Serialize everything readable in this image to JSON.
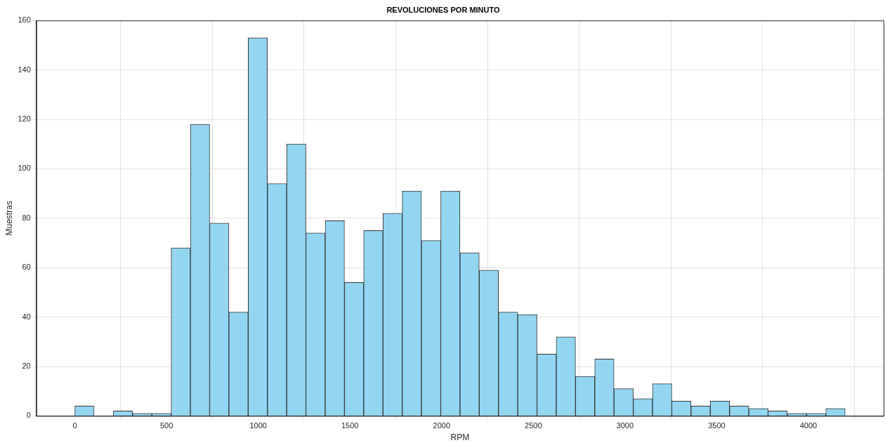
{
  "chart_data": {
    "type": "histogram",
    "title": "REVOLUCIONES POR MINUTO",
    "xlabel": "RPM",
    "ylabel": "Muestras",
    "bins": [
      0,
      105,
      210,
      315,
      420,
      525,
      630,
      735,
      840,
      945,
      1050,
      1155,
      1260,
      1365,
      1470,
      1575,
      1680,
      1785,
      1890,
      1995,
      2100,
      2205,
      2310,
      2415,
      2520,
      2625,
      2730,
      2835,
      2940,
      3045,
      3150,
      3255,
      3360,
      3465,
      3570,
      3675,
      3780,
      3885,
      3990,
      4095,
      4200
    ],
    "values": [
      4,
      0,
      2,
      1,
      1,
      68,
      118,
      78,
      42,
      153,
      94,
      110,
      74,
      79,
      54,
      75,
      82,
      91,
      71,
      91,
      66,
      59,
      42,
      41,
      25,
      32,
      16,
      23,
      11,
      7,
      13,
      6,
      4,
      6,
      4,
      3,
      2,
      1,
      1,
      3
    ],
    "color": "#93d5f3",
    "xlim": [
      -210,
      4410
    ],
    "xticks": [
      0,
      500,
      1000,
      1500,
      2000,
      2500,
      3000,
      3500,
      4000
    ],
    "ylim": [
      0,
      160
    ],
    "yticks": [
      0,
      20,
      40,
      60,
      80,
      100,
      120,
      140,
      160
    ],
    "grid": true,
    "legend": false
  }
}
